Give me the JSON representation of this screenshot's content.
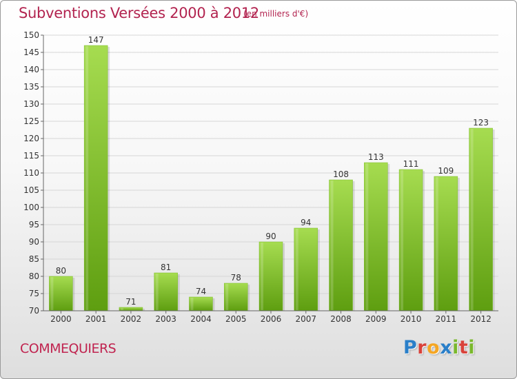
{
  "header": {
    "title": "Subventions Versées 2000 à 2012",
    "unit": "(en milliers d'€)"
  },
  "footer": {
    "commune": "COMMEQUIERS",
    "brand_letters": [
      "P",
      "r",
      "o",
      "x",
      "i",
      "t",
      "i"
    ]
  },
  "colors": {
    "title": "#b2234f",
    "bar_top": "#a6dc50",
    "bar_bottom": "#5e9e10",
    "brand": [
      "#2a7fc9",
      "#d9423a",
      "#f5a623",
      "#2a7fc9",
      "#7ab82c",
      "#d9423a",
      "#7ab82c"
    ]
  },
  "chart_data": {
    "type": "bar",
    "categories": [
      "2000",
      "2001",
      "2002",
      "2003",
      "2004",
      "2005",
      "2006",
      "2007",
      "2008",
      "2009",
      "2010",
      "2011",
      "2012"
    ],
    "values": [
      80,
      147,
      71,
      81,
      74,
      78,
      90,
      94,
      108,
      113,
      111,
      109,
      123
    ],
    "ylim": [
      70,
      150
    ],
    "yticks": [
      70,
      75,
      80,
      85,
      90,
      95,
      100,
      105,
      110,
      115,
      120,
      125,
      130,
      135,
      140,
      145,
      150
    ],
    "grid": true,
    "legend": "none"
  }
}
